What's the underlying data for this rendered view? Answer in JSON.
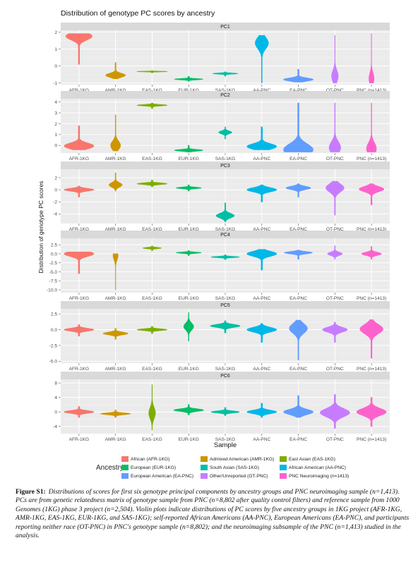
{
  "chart_data": {
    "type": "violin",
    "title": "Distribution of genotype PC scores by ancestry",
    "xlabel": "Sample",
    "ylabel": "Distribution of genotype PC scores",
    "categories": [
      "AFR-1KG",
      "AMR-1KG",
      "EAS-1KG",
      "EUR-1KG",
      "SAS-1KG",
      "AA-PNC",
      "EA-PNC",
      "OT-PNC",
      "PNC (n=1413)"
    ],
    "colors": [
      "#F8766D",
      "#CD9600",
      "#7CAE00",
      "#00BE67",
      "#00BFA4",
      "#00B8E7",
      "#619CFF",
      "#C77CFF",
      "#FF61CC"
    ],
    "panels": [
      {
        "name": "PC1",
        "ylim": [
          -1.1,
          2.1
        ],
        "yticks": [
          -1,
          0,
          1,
          2
        ],
        "ytick_labels": [
          "-1",
          "0",
          "1",
          "2"
        ],
        "violins": [
          {
            "min": 0.1,
            "max": 1.9,
            "center": 1.75,
            "width": 0.8
          },
          {
            "min": -0.75,
            "max": 0.2,
            "center": -0.55,
            "width": 0.6
          },
          {
            "min": -0.4,
            "max": -0.28,
            "center": -0.33,
            "width": 0.9
          },
          {
            "min": -0.9,
            "max": -0.62,
            "center": -0.78,
            "width": 0.85
          },
          {
            "min": -0.6,
            "max": -0.35,
            "center": -0.45,
            "width": 0.75
          },
          {
            "min": -1.0,
            "max": 1.8,
            "center": 1.35,
            "width": 0.4
          },
          {
            "min": -0.95,
            "max": -0.2,
            "center": -0.8,
            "width": 0.9
          },
          {
            "min": -1.0,
            "max": 1.8,
            "center": -0.6,
            "width": 0.2
          },
          {
            "min": -1.0,
            "max": 1.9,
            "center": -0.75,
            "width": 0.15
          }
        ]
      },
      {
        "name": "PC2",
        "ylim": [
          -0.7,
          4.3
        ],
        "yticks": [
          0,
          1,
          2,
          3,
          4
        ],
        "ytick_labels": [
          "0",
          "1",
          "2",
          "3",
          "4"
        ],
        "violins": [
          {
            "min": -0.4,
            "max": 1.8,
            "center": -0.05,
            "width": 0.9
          },
          {
            "min": -0.5,
            "max": 2.8,
            "center": 0.0,
            "width": 0.3
          },
          {
            "min": 3.4,
            "max": 3.9,
            "center": 3.7,
            "width": 0.9
          },
          {
            "min": -0.6,
            "max": 0.0,
            "center": -0.45,
            "width": 0.85
          },
          {
            "min": 0.6,
            "max": 1.7,
            "center": 1.2,
            "width": 0.4
          },
          {
            "min": -0.4,
            "max": 1.7,
            "center": -0.1,
            "width": 0.9
          },
          {
            "min": -0.6,
            "max": 3.9,
            "center": -0.4,
            "width": 0.9
          },
          {
            "min": -0.6,
            "max": 3.9,
            "center": -0.2,
            "width": 0.35
          },
          {
            "min": -0.6,
            "max": 3.9,
            "center": -0.3,
            "width": 0.3
          }
        ]
      },
      {
        "name": "PC3",
        "ylim": [
          -5.6,
          3.4
        ],
        "yticks": [
          -4,
          -2,
          0,
          2
        ],
        "ytick_labels": [
          "-4",
          "-2",
          "0",
          "2"
        ],
        "violins": [
          {
            "min": -1.2,
            "max": 0.6,
            "center": 0.0,
            "width": 0.9
          },
          {
            "min": -0.2,
            "max": 2.8,
            "center": 0.8,
            "width": 0.4
          },
          {
            "min": 0.5,
            "max": 1.6,
            "center": 1.0,
            "width": 0.9
          },
          {
            "min": -0.2,
            "max": 0.8,
            "center": 0.3,
            "width": 0.75
          },
          {
            "min": -5.3,
            "max": -2.2,
            "center": -4.3,
            "width": 0.55
          },
          {
            "min": -2.0,
            "max": 0.8,
            "center": 0.0,
            "width": 0.9
          },
          {
            "min": -1.2,
            "max": 1.0,
            "center": 0.3,
            "width": 0.75
          },
          {
            "min": -4.2,
            "max": 1.4,
            "center": 0.3,
            "width": 0.55
          },
          {
            "min": -2.5,
            "max": 1.0,
            "center": 0.1,
            "width": 0.75
          }
        ]
      },
      {
        "name": "PC4",
        "ylim": [
          -10.8,
          4.3
        ],
        "yticks": [
          -10,
          -7.5,
          -5,
          -2.5,
          0,
          2.5
        ],
        "ytick_labels": [
          "-10.0",
          "-7.5",
          "-5.0",
          "-2.5",
          "0.0",
          "2.5"
        ],
        "violins": [
          {
            "min": -5.5,
            "max": 0.5,
            "center": 0.0,
            "width": 0.9
          },
          {
            "min": -10.0,
            "max": 0.0,
            "center": -0.5,
            "width": 0.15
          },
          {
            "min": 0.8,
            "max": 2.2,
            "center": 1.6,
            "width": 0.55
          },
          {
            "min": -0.5,
            "max": 0.9,
            "center": 0.3,
            "width": 0.75
          },
          {
            "min": -1.6,
            "max": -0.3,
            "center": -0.9,
            "width": 0.85
          },
          {
            "min": -4.5,
            "max": 1.2,
            "center": 0.0,
            "width": 0.9
          },
          {
            "min": -1.5,
            "max": 1.0,
            "center": 0.3,
            "width": 0.85
          },
          {
            "min": -1.5,
            "max": 2.2,
            "center": 0.0,
            "width": 0.45
          },
          {
            "min": -1.5,
            "max": 2.0,
            "center": 0.0,
            "width": 0.6
          }
        ]
      },
      {
        "name": "PC5",
        "ylim": [
          -5.3,
          3.3
        ],
        "yticks": [
          -5,
          -2.5,
          0,
          2.5
        ],
        "ytick_labels": [
          "-5.0",
          "-2.5",
          "0.0",
          "2.5"
        ],
        "violins": [
          {
            "min": -1.0,
            "max": 0.8,
            "center": 0.0,
            "width": 0.9
          },
          {
            "min": -1.5,
            "max": 0.2,
            "center": -0.6,
            "width": 0.75
          },
          {
            "min": -0.6,
            "max": 0.5,
            "center": 0.0,
            "width": 0.9
          },
          {
            "min": -1.8,
            "max": 2.7,
            "center": 0.5,
            "width": 0.3
          },
          {
            "min": -0.5,
            "max": 1.4,
            "center": 0.6,
            "width": 0.9
          },
          {
            "min": -2.0,
            "max": 1.0,
            "center": 0.0,
            "width": 0.9
          },
          {
            "min": -4.8,
            "max": 1.5,
            "center": 0.2,
            "width": 0.55
          },
          {
            "min": -2.0,
            "max": 1.2,
            "center": 0.0,
            "width": 0.75
          },
          {
            "min": -4.5,
            "max": 1.6,
            "center": 0.1,
            "width": 0.7
          }
        ]
      },
      {
        "name": "PC6",
        "ylim": [
          -6.0,
          9.0
        ],
        "yticks": [
          -4,
          0,
          4,
          8
        ],
        "ytick_labels": [
          "-4",
          "0",
          "4",
          "8"
        ],
        "violins": [
          {
            "min": -1.5,
            "max": 1.5,
            "center": 0.0,
            "width": 0.9
          },
          {
            "min": -1.5,
            "max": 0.5,
            "center": -0.5,
            "width": 0.9
          },
          {
            "min": -5.0,
            "max": 7.5,
            "center": -0.3,
            "width": 0.2
          },
          {
            "min": -0.8,
            "max": 2.0,
            "center": 0.5,
            "width": 0.9
          },
          {
            "min": -1.0,
            "max": 1.2,
            "center": 0.0,
            "width": 0.85
          },
          {
            "min": -1.5,
            "max": 2.4,
            "center": 0.0,
            "width": 0.9
          },
          {
            "min": -1.5,
            "max": 4.5,
            "center": 0.0,
            "width": 0.9
          },
          {
            "min": -4.5,
            "max": 4.8,
            "center": -0.2,
            "width": 0.9
          },
          {
            "min": -4.0,
            "max": 4.0,
            "center": 0.0,
            "width": 0.9
          }
        ]
      }
    ]
  },
  "legend": {
    "title": "Ancestry",
    "items": [
      {
        "label": "African (AFR-1KG)",
        "color": "#F8766D"
      },
      {
        "label": "Admixed American (AMR-1KG)",
        "color": "#CD9600"
      },
      {
        "label": "East Asian (EAS-1KG)",
        "color": "#7CAE00"
      },
      {
        "label": "European (EUR-1KG)",
        "color": "#00BE67"
      },
      {
        "label": "South Asian (SAS-1KG)",
        "color": "#00BFA4"
      },
      {
        "label": "African American (AA-PNC)",
        "color": "#00B8E7"
      },
      {
        "label": "European American (EA-PNC)",
        "color": "#619CFF"
      },
      {
        "label": "Other/Unreported (OT-PNC)",
        "color": "#C77CFF"
      },
      {
        "label": "PNC Neuroimaging (n=1413)",
        "color": "#FF61CC"
      }
    ]
  },
  "caption": {
    "label": "Figure S1:",
    "text": "Distributions of scores for first six genotype principal components by ancestry groups and PNC neuroimaging sample (n=1,413). PCs are from genetic relatedness matrix of genotype sample from PNC (n=8,802 after quality control filters) and reference sample from 1000 Genomes (1KG) phase 3 project (n=2,504). Violin plots indicate distributions of PC scores by five ancestry groups in 1KG project (AFR-1KG, AMR-1KG, EAS-1KG, EUR-1KG, and SAS-1KG); self-reported African Americans (AA-PNC), European Americans (EA-PNC), and participants reporting neither race (OT-PNC) in PNC's genotype sample (n=8,802); and the neuroimaging subsample of the PNC (n=1,413) studied in the analysis."
  }
}
